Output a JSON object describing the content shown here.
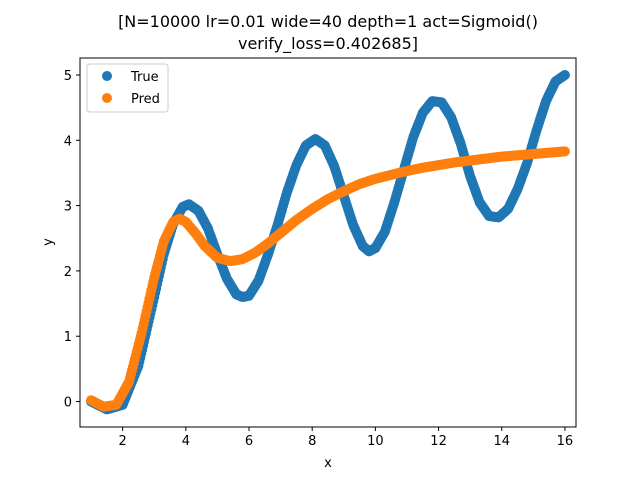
{
  "chart_data": {
    "type": "scatter",
    "title": "[N=10000 lr=0.01 wide=40 depth=1 act=Sigmoid()",
    "subtitle": "verify_loss=0.402685]",
    "xlabel": "x",
    "ylabel": "y",
    "xlim": [
      0.65,
      16.35
    ],
    "ylim": [
      -0.39,
      5.26
    ],
    "xticks": [
      2,
      4,
      6,
      8,
      10,
      12,
      14,
      16
    ],
    "yticks": [
      0,
      1,
      2,
      3,
      4,
      5
    ],
    "grid": false,
    "legend_position": "top-left",
    "series": [
      {
        "name": "True",
        "color": "#1f77b4",
        "x": [
          1.0,
          1.5,
          2.0,
          2.5,
          3.0,
          3.3,
          3.6,
          3.9,
          4.1,
          4.4,
          4.7,
          5.0,
          5.3,
          5.6,
          5.8,
          6.0,
          6.3,
          6.6,
          6.9,
          7.2,
          7.5,
          7.8,
          8.1,
          8.4,
          8.7,
          9.0,
          9.3,
          9.6,
          9.8,
          10.0,
          10.3,
          10.6,
          10.9,
          11.2,
          11.5,
          11.8,
          12.1,
          12.4,
          12.7,
          13.0,
          13.3,
          13.6,
          13.9,
          14.2,
          14.5,
          14.8,
          15.1,
          15.4,
          15.7,
          16.0
        ],
        "y": [
          0.0,
          -0.12,
          -0.05,
          0.55,
          1.6,
          2.25,
          2.72,
          2.98,
          3.02,
          2.92,
          2.65,
          2.25,
          1.88,
          1.64,
          1.6,
          1.62,
          1.85,
          2.25,
          2.7,
          3.2,
          3.62,
          3.92,
          4.02,
          3.92,
          3.6,
          3.15,
          2.7,
          2.38,
          2.3,
          2.35,
          2.6,
          3.05,
          3.55,
          4.05,
          4.42,
          4.6,
          4.58,
          4.35,
          3.95,
          3.45,
          3.05,
          2.84,
          2.82,
          2.95,
          3.25,
          3.65,
          4.15,
          4.6,
          4.9,
          5.0
        ]
      },
      {
        "name": "Pred",
        "color": "#ff7f0e",
        "x": [
          1.0,
          1.4,
          1.8,
          2.2,
          2.6,
          3.0,
          3.3,
          3.6,
          3.8,
          4.0,
          4.3,
          4.6,
          5.0,
          5.4,
          5.8,
          6.2,
          6.6,
          7.0,
          7.5,
          8.0,
          8.5,
          9.0,
          9.5,
          10.0,
          10.5,
          11.0,
          11.5,
          12.0,
          12.5,
          13.0,
          13.5,
          14.0,
          14.5,
          15.0,
          15.5,
          16.0
        ],
        "y": [
          0.02,
          -0.08,
          -0.05,
          0.3,
          1.05,
          1.9,
          2.45,
          2.75,
          2.8,
          2.75,
          2.58,
          2.38,
          2.2,
          2.15,
          2.18,
          2.28,
          2.42,
          2.58,
          2.78,
          2.95,
          3.1,
          3.22,
          3.33,
          3.41,
          3.47,
          3.53,
          3.58,
          3.62,
          3.66,
          3.69,
          3.72,
          3.75,
          3.77,
          3.79,
          3.81,
          3.83
        ]
      }
    ]
  }
}
